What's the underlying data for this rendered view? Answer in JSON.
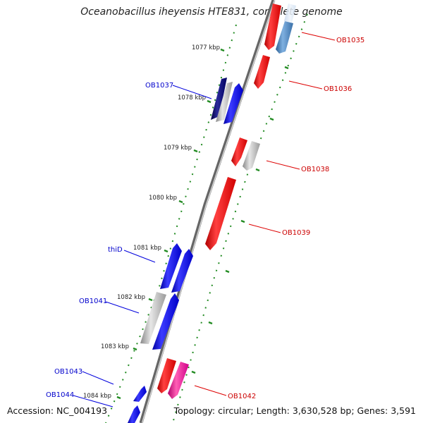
{
  "title": "Oceanobacillus iheyensis HTE831, complete genome",
  "footer": {
    "accession": "Accession: NC_004193",
    "topology": "Topology: circular; Length: 3,630,528 bp; Genes: 3,591"
  },
  "colors": {
    "forward_gene": "#0000ee",
    "reverse_gene": "#ee0000",
    "pseudo_gene": "#aaaaaa",
    "forward_label": "#0000cc",
    "reverse_label": "#cc0000",
    "tick": "#228b22"
  },
  "kbp_labels": [
    "1077 kbp",
    "1078 kbp",
    "1079 kbp",
    "1080 kbp",
    "1081 kbp",
    "1082 kbp",
    "1083 kbp",
    "1084 kbp"
  ],
  "gene_labels": {
    "OB1035": "OB1035",
    "OB1036": "OB1036",
    "OB1037": "OB1037",
    "OB1038": "OB1038",
    "OB1039": "OB1039",
    "thiD": "thiD",
    "OB1041": "OB1041",
    "OB1042": "OB1042",
    "OB1043": "OB1043",
    "OB1044": "OB1044"
  }
}
